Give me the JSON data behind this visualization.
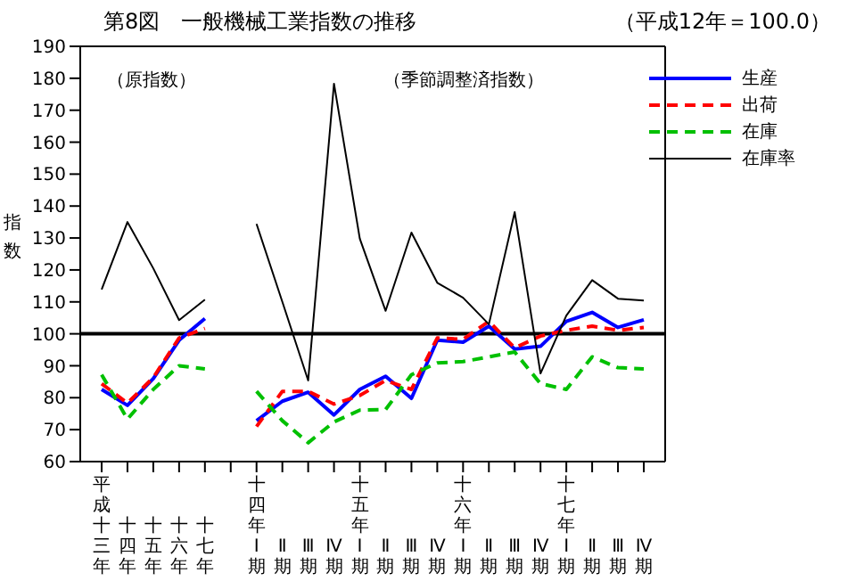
{
  "chart_data": {
    "type": "line",
    "title": "第8図　一般機械工業指数の推移",
    "subtitle": "（平成12年＝100.0）",
    "ylabel": "指数",
    "annotations": [
      "（原指数）",
      "（季節調整済指数）"
    ],
    "categories": [
      "平成十三年",
      "十四年",
      "十五年",
      "十六年",
      "十七年",
      null,
      "十四年Ⅰ期",
      "Ⅱ期",
      "Ⅲ期",
      "Ⅳ期",
      "十五年Ⅰ期",
      "Ⅱ期",
      "Ⅲ期",
      "Ⅳ期",
      "十六年Ⅰ期",
      "Ⅱ期",
      "Ⅲ期",
      "Ⅳ期",
      "十七年Ⅰ期",
      "Ⅱ期",
      "Ⅲ期",
      "Ⅳ期"
    ],
    "series": [
      {
        "name": "生産",
        "color": "#0000ff",
        "line_style": "solid",
        "values": [
          82.6,
          77.6,
          86,
          98,
          104.8,
          null,
          72.8,
          78.9,
          81.7,
          74.6,
          82.6,
          86.7,
          79.8,
          98,
          97.4,
          102.4,
          95.2,
          96.1,
          103.9,
          106.7,
          102,
          104.4
        ]
      },
      {
        "name": "出荷",
        "color": "#ff0000",
        "line_style": "dashed",
        "values": [
          84.4,
          78.3,
          86.3,
          98.7,
          101.7,
          null,
          71,
          82,
          82,
          78,
          80.7,
          85.4,
          82.6,
          98.7,
          98.3,
          103.9,
          95.6,
          99.3,
          101.1,
          102.4,
          101.1,
          102
        ]
      },
      {
        "name": "在庫",
        "color": "#00c000",
        "line_style": "dashed",
        "values": [
          87.2,
          73.3,
          82.6,
          90,
          89,
          null,
          82,
          72.8,
          65.9,
          72.4,
          76.1,
          76.3,
          87.2,
          90.9,
          91.3,
          92.8,
          94.3,
          84.4,
          82.6,
          92.8,
          89.4,
          89
        ]
      },
      {
        "name": "在庫率",
        "color": "#000000",
        "line_style": "solid",
        "values": [
          113.9,
          135,
          120.5,
          104.3,
          110.7,
          null,
          134.4,
          110,
          85.4,
          178.3,
          129.8,
          107.2,
          131.7,
          116,
          111.3,
          103,
          138.1,
          87.6,
          105.7,
          116.8,
          111,
          110.4
        ]
      }
    ],
    "ylim": [
      60,
      190
    ],
    "yticks": [
      60,
      70,
      80,
      90,
      100,
      110,
      120,
      130,
      140,
      150,
      160,
      170,
      180,
      190
    ],
    "ref_lines": [
      {
        "axis": "y",
        "value": 100,
        "color": "#000000"
      }
    ],
    "grid": false,
    "legend": "top right",
    "marker": "none"
  }
}
